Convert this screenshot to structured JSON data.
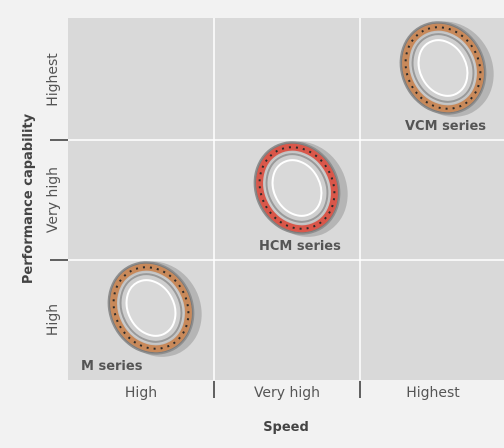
{
  "chart_data": {
    "type": "scatter",
    "xlabel": "Speed",
    "ylabel": "Performance capability",
    "x_categories": [
      "High",
      "Very high",
      "Highest"
    ],
    "y_categories": [
      "High",
      "Very high",
      "Highest"
    ],
    "grid": true,
    "points": [
      {
        "label": "M series",
        "x": "High",
        "y": "High",
        "ring_color": "#c8895a"
      },
      {
        "label": "HCM series",
        "x": "Very high",
        "y": "Very high",
        "ring_color": "#d9574a"
      },
      {
        "label": "VCM series",
        "x": "Highest",
        "y": "Highest",
        "ring_color": "#c8895a"
      }
    ]
  },
  "colors": {
    "plot_background": "#d9d9d9",
    "grid_line": "#ffffff",
    "text": "#555555"
  }
}
